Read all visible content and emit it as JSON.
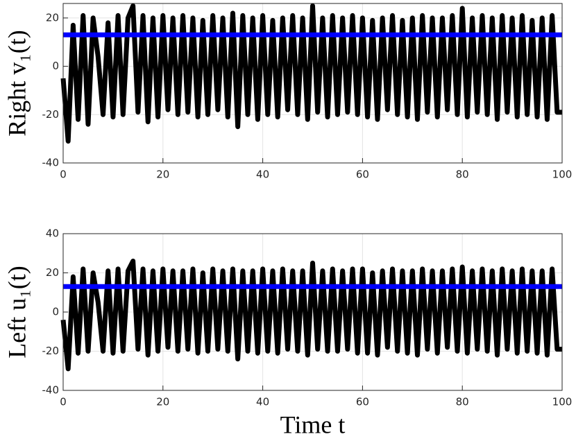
{
  "chart_data": [
    {
      "type": "line",
      "ylabel": "Right v₁(t)",
      "xlim": [
        0,
        100
      ],
      "xticks": [
        0,
        20,
        40,
        60,
        80,
        100
      ],
      "ylim": [
        -40,
        26
      ],
      "yticks": [
        -40,
        -20,
        0,
        20
      ],
      "grid": true,
      "series": [
        {
          "color": "#000000",
          "x": [
            0,
            1,
            2,
            3,
            4,
            5,
            6,
            7,
            8,
            9,
            10,
            11,
            12,
            13,
            14,
            15,
            16,
            17,
            18,
            19,
            20,
            21,
            22,
            23,
            24,
            25,
            26,
            27,
            28,
            29,
            30,
            31,
            32,
            33,
            34,
            35,
            36,
            37,
            38,
            39,
            40,
            41,
            42,
            43,
            44,
            45,
            46,
            47,
            48,
            49,
            50,
            51,
            52,
            53,
            54,
            55,
            56,
            57,
            58,
            59,
            60,
            61,
            62,
            63,
            64,
            65,
            66,
            67,
            68,
            69,
            70,
            71,
            72,
            73,
            74,
            75,
            76,
            77,
            78,
            79,
            80,
            81,
            82,
            83,
            84,
            85,
            86,
            87,
            88,
            89,
            90,
            91,
            92,
            93,
            94,
            95,
            96,
            97,
            98,
            99,
            100
          ],
          "values": [
            -5,
            -31,
            17,
            -22,
            21,
            -24,
            20,
            4,
            -20,
            18,
            -21,
            21,
            -20,
            20,
            25,
            -19,
            21,
            -23,
            20,
            -21,
            21,
            -18,
            20,
            -20,
            21,
            -19,
            20,
            -21,
            19,
            -20,
            21,
            -18,
            20,
            -21,
            22,
            -25,
            21,
            -20,
            20,
            -22,
            21,
            -20,
            19,
            -21,
            20,
            -18,
            21,
            -20,
            20,
            -22,
            25,
            -19,
            20,
            -21,
            21,
            -20,
            20,
            -19,
            21,
            -20,
            20,
            -21,
            19,
            -22,
            20,
            -18,
            21,
            -20,
            19,
            -21,
            20,
            -22,
            21,
            -19,
            20,
            -21,
            20,
            -18,
            21,
            -20,
            24,
            -21,
            20,
            -19,
            21,
            -20,
            20,
            -22,
            21,
            -19,
            20,
            -21,
            21,
            -20,
            19,
            -21,
            20,
            -22,
            21,
            -19,
            -19
          ]
        },
        {
          "color": "#0000ff",
          "x": [
            0,
            100
          ],
          "values": [
            13,
            13
          ]
        }
      ]
    },
    {
      "type": "line",
      "ylabel": "Left u₁(t)",
      "xlabel": "Time t",
      "xlim": [
        0,
        100
      ],
      "xticks": [
        0,
        20,
        40,
        60,
        80,
        100
      ],
      "ylim": [
        -40,
        40
      ],
      "yticks": [
        -40,
        -20,
        0,
        20,
        40
      ],
      "grid": true,
      "series": [
        {
          "color": "#000000",
          "x": [
            0,
            1,
            2,
            3,
            4,
            5,
            6,
            7,
            8,
            9,
            10,
            11,
            12,
            13,
            14,
            15,
            16,
            17,
            18,
            19,
            20,
            21,
            22,
            23,
            24,
            25,
            26,
            27,
            28,
            29,
            30,
            31,
            32,
            33,
            34,
            35,
            36,
            37,
            38,
            39,
            40,
            41,
            42,
            43,
            44,
            45,
            46,
            47,
            48,
            49,
            50,
            51,
            52,
            53,
            54,
            55,
            56,
            57,
            58,
            59,
            60,
            61,
            62,
            63,
            64,
            65,
            66,
            67,
            68,
            69,
            70,
            71,
            72,
            73,
            74,
            75,
            76,
            77,
            78,
            79,
            80,
            81,
            82,
            83,
            84,
            85,
            86,
            87,
            88,
            89,
            90,
            91,
            92,
            93,
            94,
            95,
            96,
            97,
            98,
            99,
            100
          ],
          "values": [
            -4,
            -29,
            18,
            -21,
            22,
            -20,
            20,
            5,
            -20,
            21,
            -21,
            22,
            -20,
            21,
            26,
            -19,
            22,
            -22,
            21,
            -20,
            22,
            -18,
            21,
            -20,
            21,
            -19,
            22,
            -21,
            20,
            -20,
            22,
            -19,
            21,
            -20,
            22,
            -24,
            21,
            -20,
            21,
            -21,
            22,
            -20,
            21,
            -21,
            22,
            -19,
            21,
            -20,
            21,
            -22,
            25,
            -19,
            21,
            -20,
            22,
            -20,
            21,
            -19,
            22,
            -21,
            22,
            -21,
            20,
            -22,
            21,
            -18,
            22,
            -20,
            21,
            -21,
            21,
            -22,
            22,
            -19,
            21,
            -21,
            21,
            -18,
            22,
            -20,
            23,
            -21,
            21,
            -19,
            22,
            -20,
            21,
            -22,
            22,
            -19,
            21,
            -21,
            22,
            -20,
            21,
            -21,
            21,
            -22,
            22,
            -19,
            -19
          ]
        },
        {
          "color": "#0000ff",
          "x": [
            0,
            100
          ],
          "values": [
            13,
            13
          ]
        }
      ]
    }
  ]
}
